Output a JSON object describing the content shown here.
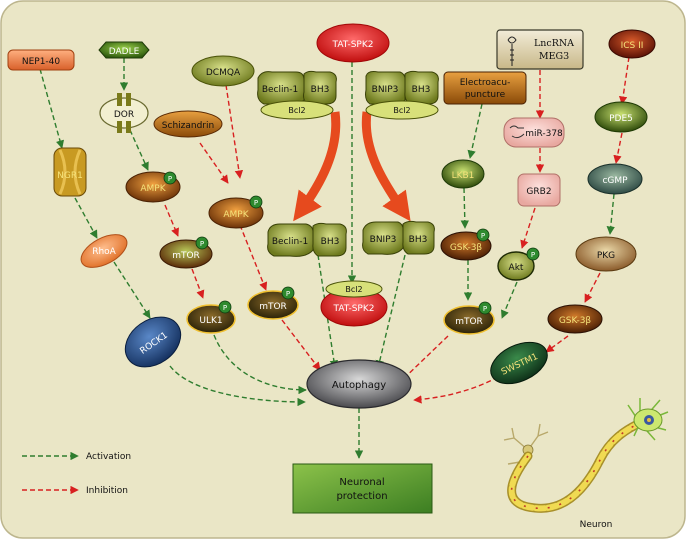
{
  "diagram": {
    "nodes": {
      "nep1_40": "NEP1-40",
      "ngr1": "NGR1",
      "rhoa": "RhoA",
      "rock1": "ROCK1",
      "dadle": "DADLE",
      "dor": "DOR",
      "ampk_left": "AMPK",
      "mtor_left": "mTOR",
      "ulk1": "ULK1",
      "schizandrin": "Schizandrin",
      "dcmqa": "DCMQA",
      "ampk_mid": "AMPK",
      "mtor_mid": "mTOR",
      "tat_spk2_top": "TAT-SPK2",
      "beclin1_top": "Beclin-1",
      "bh3_beclin_top": "BH3",
      "bcl2_beclin_top": "Bcl2",
      "bnip3_top": "BNIP3",
      "bh3_bnip3_top": "BH3",
      "bcl2_bnip3_top": "Bcl2",
      "beclin1_free": "Beclin-1",
      "bh3_beclin_free": "BH3",
      "bnip3_free": "BNIP3",
      "bh3_bnip3_free": "BH3",
      "bcl2_bound": "Bcl2",
      "tat_spk2_bound": "TAT-SPK2",
      "electroacupuncture": "Electroacu-\npuncture",
      "lkb1": "LKB1",
      "gsk3b_mid": "GSK-3β",
      "mtor_right": "mTOR",
      "lncrna_meg3": "LncRNA\nMEG3",
      "mir378": "miR-378",
      "grb2": "GRB2",
      "akt": "Akt",
      "ics2": "ICS II",
      "pde5": "PDE5",
      "cgmp": "cGMP",
      "pkg": "PKG",
      "gsk3b_right": "GSK-3β",
      "swstm1": "SWSTM1",
      "autophagy": "Autophagy",
      "neuronal_protection": "Neuronal\nprotection",
      "neuron": "Neuron",
      "phospho": "P"
    },
    "legend": {
      "activation": "Activation",
      "inhibition": "Inhibition"
    },
    "colors": {
      "background": "#eae6c6",
      "activation": "#2f7d2f",
      "inhibition": "#d82020",
      "big_arrow": "#e64a1e",
      "output_box": "#4f9f33"
    }
  }
}
